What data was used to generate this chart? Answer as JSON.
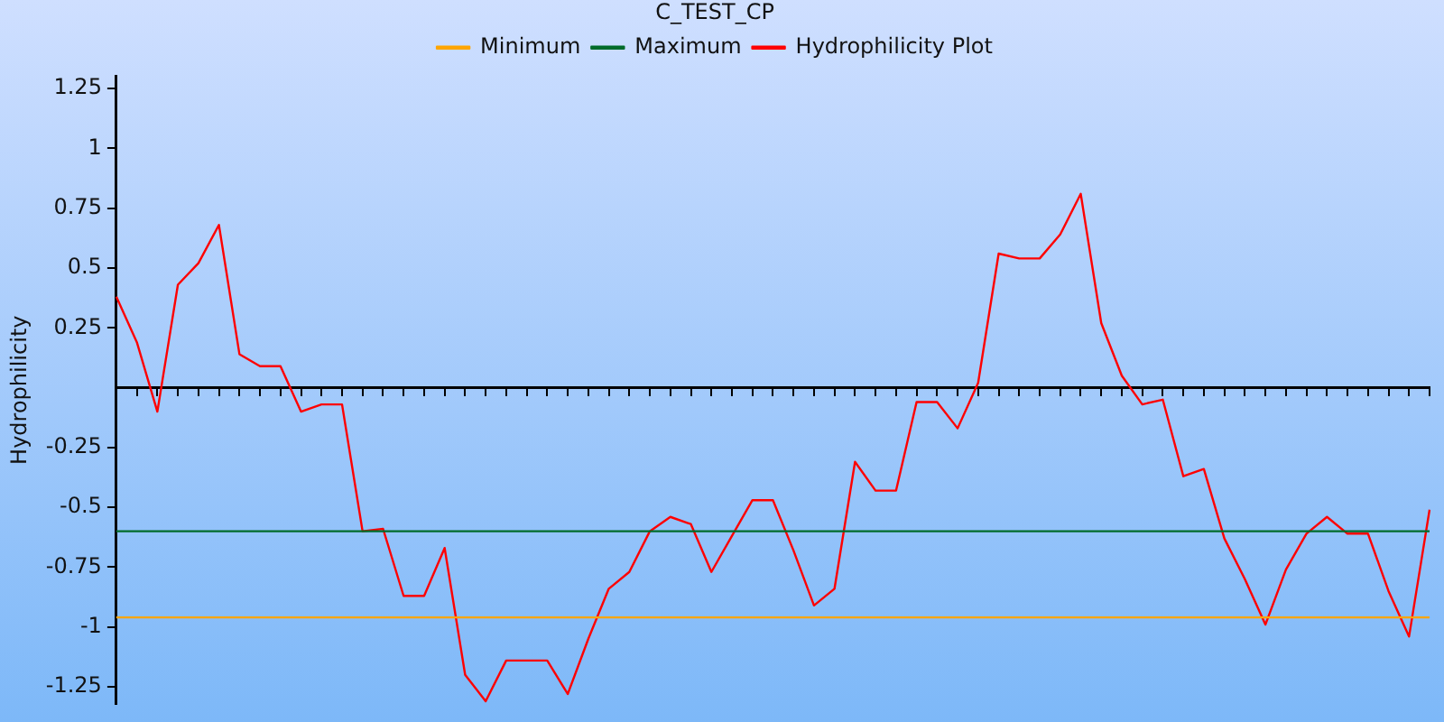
{
  "chart_data": {
    "type": "line",
    "title": "C_TEST_CP",
    "ylabel": "Hydrophilicity",
    "categories": [
      null,
      null,
      null,
      null,
      null,
      null,
      null,
      null,
      null,
      null,
      null,
      null,
      null,
      null,
      null,
      null,
      null,
      null,
      null,
      null,
      null,
      null,
      null,
      null,
      null,
      null,
      null,
      null,
      null,
      null,
      null,
      null,
      null,
      null,
      null,
      null,
      null,
      null,
      null,
      null,
      null,
      null,
      null,
      null,
      null,
      null,
      null,
      null,
      null,
      null,
      null,
      null,
      null,
      null,
      null,
      null,
      null,
      null,
      null,
      null,
      null,
      null,
      null,
      null,
      null
    ],
    "series": [
      {
        "name": "Minimum",
        "color": "#ffa500",
        "values": [
          -0.96,
          -0.96,
          -0.96,
          -0.96,
          -0.96,
          -0.96,
          -0.96,
          -0.96,
          -0.96,
          -0.96,
          -0.96,
          -0.96,
          -0.96,
          -0.96,
          -0.96,
          -0.96,
          -0.96,
          -0.96,
          -0.96,
          -0.96,
          -0.96,
          -0.96,
          -0.96,
          -0.96,
          -0.96,
          -0.96,
          -0.96,
          -0.96,
          -0.96,
          -0.96,
          -0.96,
          -0.96,
          -0.96,
          -0.96,
          -0.96,
          -0.96,
          -0.96,
          -0.96,
          -0.96,
          -0.96,
          -0.96,
          -0.96,
          -0.96,
          -0.96,
          -0.96,
          -0.96,
          -0.96,
          -0.96,
          -0.96,
          -0.96,
          -0.96,
          -0.96,
          -0.96,
          -0.96,
          -0.96,
          -0.96,
          -0.96,
          -0.96,
          -0.96,
          -0.96,
          -0.96,
          -0.96,
          -0.96,
          -0.96,
          -0.96
        ]
      },
      {
        "name": "Maximum",
        "color": "#006b2a",
        "values": [
          -0.6,
          -0.6,
          -0.6,
          -0.6,
          -0.6,
          -0.6,
          -0.6,
          -0.6,
          -0.6,
          -0.6,
          -0.6,
          -0.6,
          -0.6,
          -0.6,
          -0.6,
          -0.6,
          -0.6,
          -0.6,
          -0.6,
          -0.6,
          -0.6,
          -0.6,
          -0.6,
          -0.6,
          -0.6,
          -0.6,
          -0.6,
          -0.6,
          -0.6,
          -0.6,
          -0.6,
          -0.6,
          -0.6,
          -0.6,
          -0.6,
          -0.6,
          -0.6,
          -0.6,
          -0.6,
          -0.6,
          -0.6,
          -0.6,
          -0.6,
          -0.6,
          -0.6,
          -0.6,
          -0.6,
          -0.6,
          -0.6,
          -0.6,
          -0.6,
          -0.6,
          -0.6,
          -0.6,
          -0.6,
          -0.6,
          -0.6,
          -0.6,
          -0.6,
          -0.6,
          -0.6,
          -0.6,
          -0.6,
          -0.6,
          -0.6
        ]
      },
      {
        "name": "Hydrophilicity Plot",
        "color": "#ff0000",
        "values": [
          0.38,
          0.19,
          -0.1,
          0.43,
          0.52,
          0.68,
          0.14,
          0.09,
          0.09,
          -0.1,
          -0.07,
          -0.07,
          -0.6,
          -0.59,
          -0.87,
          -0.87,
          -0.67,
          -1.2,
          -1.31,
          -1.14,
          -1.14,
          -1.14,
          -1.28,
          -1.05,
          -0.84,
          -0.77,
          -0.6,
          -0.54,
          -0.57,
          -0.77,
          -0.62,
          -0.47,
          -0.47,
          -0.68,
          -0.91,
          -0.84,
          -0.31,
          -0.43,
          -0.43,
          -0.06,
          -0.06,
          -0.17,
          0.02,
          0.56,
          0.54,
          0.54,
          0.64,
          0.81,
          0.27,
          0.05,
          -0.07,
          -0.05,
          -0.37,
          -0.34,
          -0.63,
          -0.8,
          -0.99,
          -0.76,
          -0.61,
          -0.54,
          -0.61,
          -0.61,
          -0.85,
          -1.04,
          -0.51
        ]
      }
    ],
    "ylim": [
      -1.32,
      1.3
    ],
    "yticks": [
      -1.25,
      -1,
      -0.75,
      -0.5,
      -0.25,
      1.25,
      1,
      0.75,
      0.5,
      0.25
    ],
    "grid": false,
    "legend": "top",
    "tick_labels": "y"
  }
}
